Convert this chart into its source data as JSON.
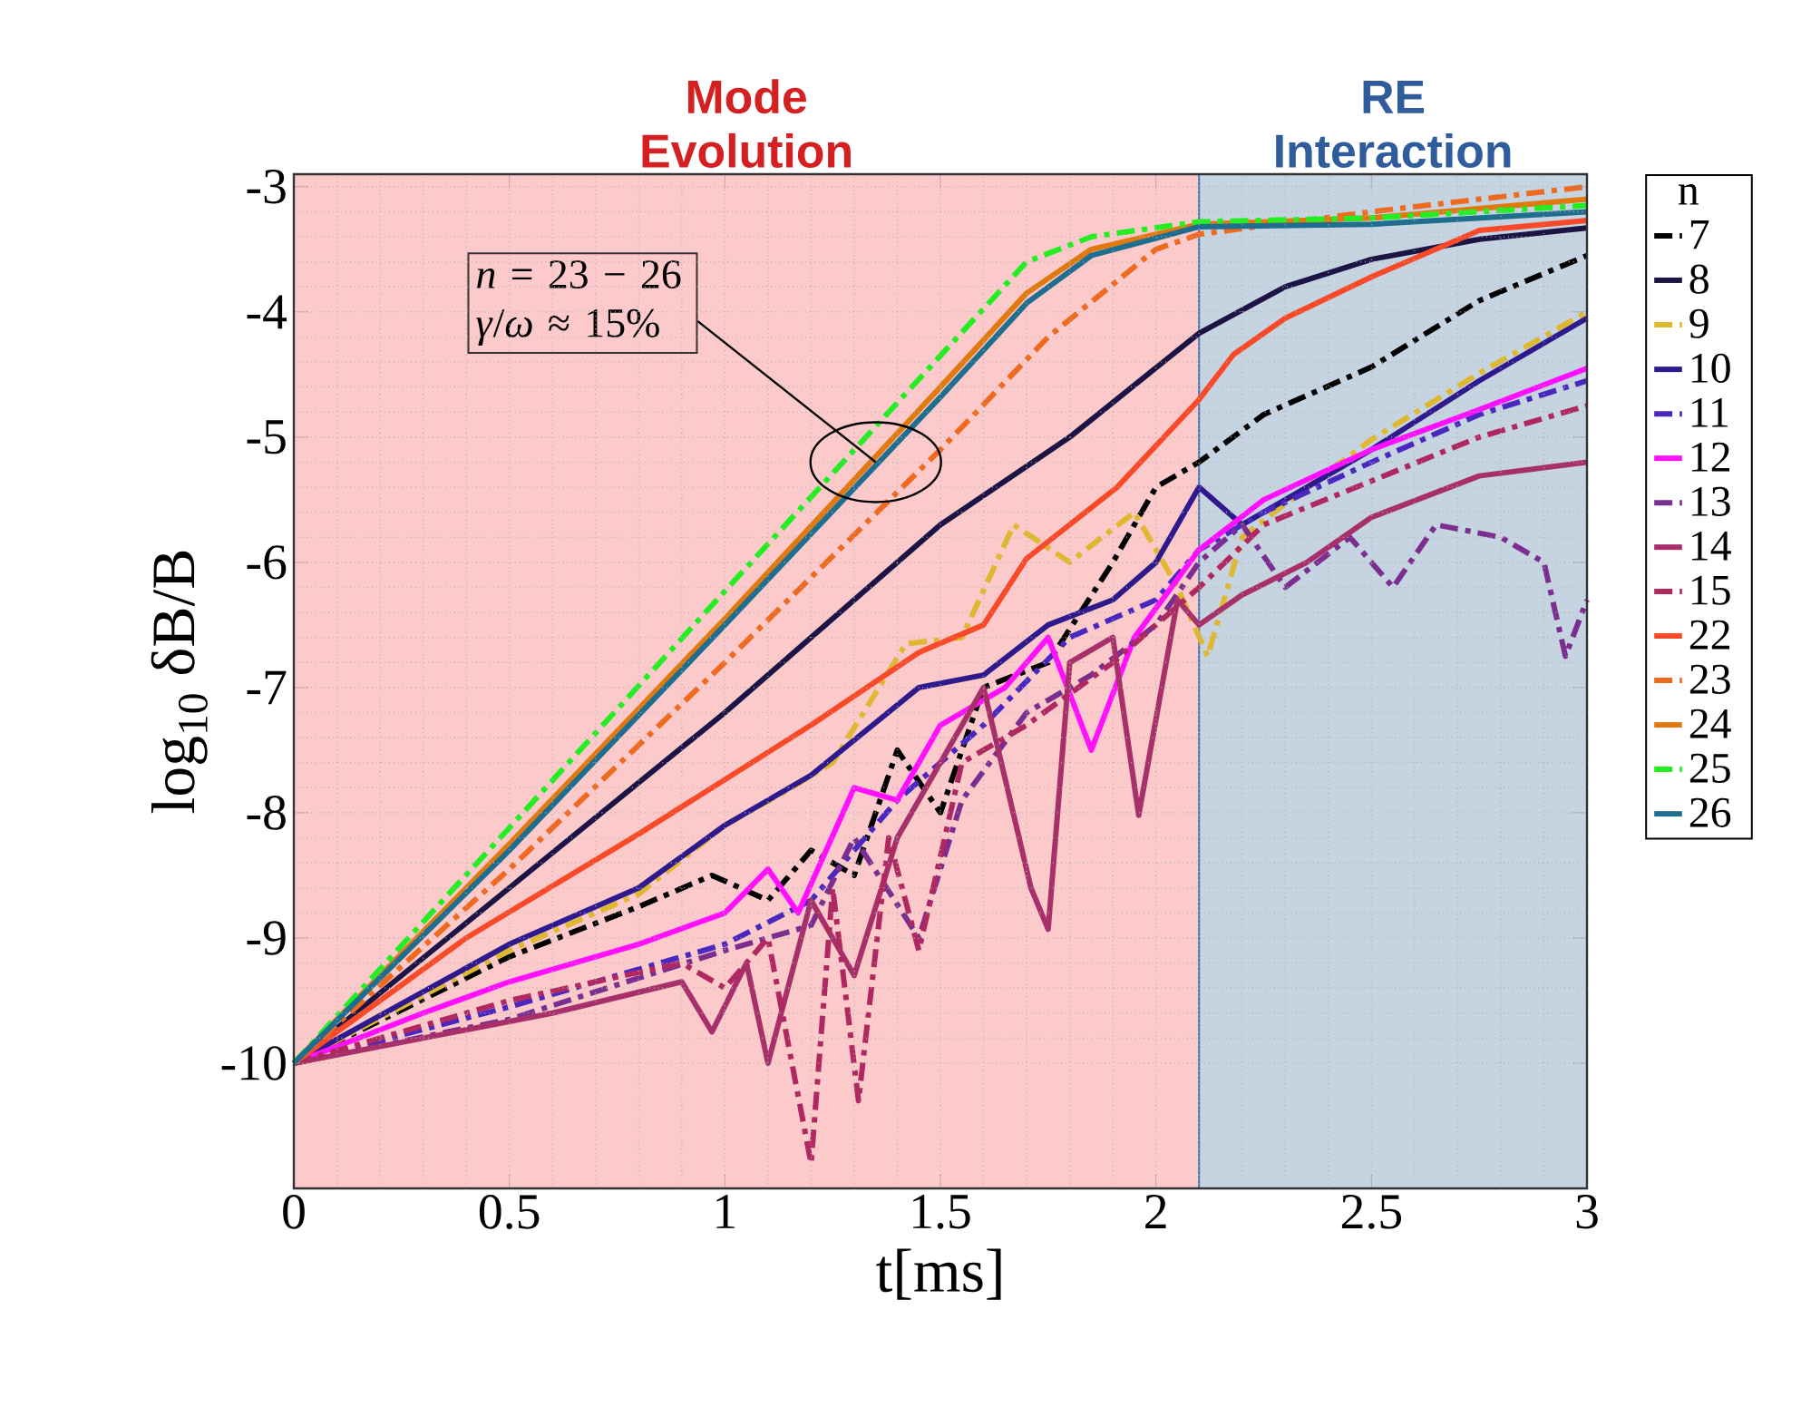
{
  "chart_data": {
    "type": "line",
    "xlabel": "t[ms]",
    "ylabel": "log$_{10}$ δB/B",
    "legend_title": "n",
    "xlim": [
      0,
      3
    ],
    "ylim": [
      -11,
      -2.9
    ],
    "xticks": [
      0,
      0.5,
      1,
      1.5,
      2,
      2.5,
      3
    ],
    "yticks": [
      -10,
      -9,
      -8,
      -7,
      -6,
      -5,
      -4,
      -3
    ],
    "grid": true,
    "legend": "right",
    "bands": [
      {
        "axis": "x",
        "from": 0,
        "to": 2.1,
        "label": "Mode Evolution",
        "color": "#fccaca"
      },
      {
        "axis": "x",
        "from": 2.1,
        "to": 3,
        "label": "RE Interaction",
        "color": "#c6d4e1"
      }
    ],
    "ref_lines": [
      {
        "axis": "x",
        "value": 2.1,
        "color": "#3c6eaa"
      }
    ],
    "annotations": [
      {
        "text": "*n* = 23 − 26 *γ*/*ω* ≈ 15%",
        "x": 1.35,
        "y": -5.2
      }
    ],
    "series": [
      {
        "name": "7",
        "color": "#000000",
        "line_style": "dashed",
        "x": [
          0,
          0.5,
          0.8,
          0.97,
          1.1,
          1.2,
          1.3,
          1.4,
          1.5,
          1.6,
          1.75,
          1.9,
          2.0,
          2.1,
          2.25,
          2.5,
          2.75,
          3
        ],
        "values": [
          -10,
          -9.15,
          -8.75,
          -8.5,
          -8.7,
          -8.3,
          -8.5,
          -7.5,
          -8.0,
          -7.0,
          -6.8,
          -6.0,
          -5.4,
          -5.2,
          -4.82,
          -4.44,
          -3.91,
          -3.55
        ]
      },
      {
        "name": "8",
        "color": "#1c1444",
        "line_style": "solid",
        "x": [
          0,
          0.5,
          1,
          1.5,
          1.8,
          2.1,
          2.3,
          2.5,
          2.75,
          3
        ],
        "values": [
          -10,
          -8.6,
          -7.2,
          -5.7,
          -5.0,
          -4.17,
          -3.8,
          -3.58,
          -3.42,
          -3.33
        ]
      },
      {
        "name": "9",
        "color": "#e0b830",
        "line_style": "dashed",
        "x": [
          0,
          0.5,
          0.8,
          1.0,
          1.14,
          1.25,
          1.42,
          1.55,
          1.67,
          1.8,
          1.95,
          2.05,
          2.12,
          2.2,
          2.35,
          2.5,
          2.75,
          3
        ],
        "values": [
          -10,
          -9.1,
          -8.65,
          -8.1,
          -7.83,
          -7.6,
          -6.65,
          -6.6,
          -5.7,
          -6.0,
          -5.6,
          -6.2,
          -6.75,
          -5.8,
          -5.4,
          -5.02,
          -4.49,
          -4.0
        ]
      },
      {
        "name": "10",
        "color": "#2e1a8c",
        "line_style": "solid",
        "x": [
          0,
          0.5,
          0.8,
          1.0,
          1.2,
          1.45,
          1.6,
          1.75,
          1.9,
          2.0,
          2.1,
          2.2,
          2.35,
          2.5,
          2.75,
          3
        ],
        "values": [
          -10,
          -9.05,
          -8.6,
          -8.1,
          -7.7,
          -7.0,
          -6.9,
          -6.5,
          -6.3,
          -6.0,
          -5.4,
          -5.7,
          -5.4,
          -5.1,
          -4.55,
          -4.05
        ]
      },
      {
        "name": "11",
        "color": "#4a28c0",
        "line_style": "dashed",
        "x": [
          0,
          0.5,
          1.0,
          1.2,
          1.4,
          1.6,
          1.8,
          2.0,
          2.1,
          2.25,
          2.5,
          2.75,
          3
        ],
        "values": [
          -10,
          -9.55,
          -9.05,
          -8.7,
          -7.9,
          -7.3,
          -6.6,
          -6.3,
          -5.9,
          -5.6,
          -5.2,
          -4.82,
          -4.55
        ]
      },
      {
        "name": "12",
        "color": "#ff10ff",
        "line_style": "solid",
        "x": [
          0,
          0.3,
          0.5,
          0.8,
          1.0,
          1.1,
          1.17,
          1.3,
          1.4,
          1.5,
          1.65,
          1.75,
          1.85,
          1.95,
          2.1,
          2.25,
          2.5,
          2.75,
          3
        ],
        "values": [
          -10,
          -9.6,
          -9.35,
          -9.05,
          -8.8,
          -8.45,
          -8.8,
          -7.8,
          -7.9,
          -7.3,
          -7.0,
          -6.6,
          -7.5,
          -6.6,
          -5.9,
          -5.5,
          -5.1,
          -4.78,
          -4.45
        ]
      },
      {
        "name": "13",
        "color": "#7a2f90",
        "line_style": "dashed",
        "x": [
          0,
          0.5,
          1.0,
          1.2,
          1.3,
          1.45,
          1.55,
          1.7,
          1.85,
          2.0,
          2.1,
          2.2,
          2.3,
          2.45,
          2.55,
          2.65,
          2.8,
          2.9,
          2.95,
          3
        ],
        "values": [
          -10,
          -9.65,
          -9.1,
          -8.9,
          -8.2,
          -9.0,
          -7.9,
          -7.2,
          -6.9,
          -6.5,
          -6.0,
          -5.7,
          -6.2,
          -5.8,
          -6.2,
          -5.7,
          -5.8,
          -6.0,
          -6.75,
          -6.3
        ]
      },
      {
        "name": "14",
        "color": "#a8306a",
        "line_style": "solid",
        "x": [
          0,
          0.3,
          0.6,
          0.9,
          0.97,
          1.05,
          1.1,
          1.2,
          1.3,
          1.4,
          1.5,
          1.6,
          1.71,
          1.75,
          1.8,
          1.9,
          1.96,
          2.05,
          2.1,
          2.2,
          2.35,
          2.5,
          2.75,
          3
        ],
        "values": [
          -10,
          -9.8,
          -9.6,
          -9.35,
          -9.75,
          -9.2,
          -10.0,
          -8.7,
          -9.3,
          -8.2,
          -7.6,
          -7.0,
          -8.6,
          -8.93,
          -6.8,
          -6.6,
          -8.02,
          -6.3,
          -6.5,
          -6.26,
          -6.0,
          -5.64,
          -5.31,
          -5.2
        ]
      },
      {
        "name": "15",
        "color": "#b02860",
        "line_style": "dashed",
        "x": [
          0,
          0.5,
          0.9,
          1.0,
          1.1,
          1.2,
          1.25,
          1.31,
          1.38,
          1.45,
          1.55,
          1.7,
          1.9,
          2.1,
          2.25,
          2.5,
          2.75,
          3
        ],
        "values": [
          -10,
          -9.5,
          -9.2,
          -9.4,
          -9.0,
          -10.8,
          -8.6,
          -10.3,
          -8.2,
          -9.1,
          -7.6,
          -7.3,
          -6.8,
          -6.2,
          -5.7,
          -5.35,
          -5.0,
          -4.75
        ]
      },
      {
        "name": "22",
        "color": "#f84a28",
        "line_style": "solid",
        "x": [
          0,
          0.4,
          0.8,
          1.2,
          1.45,
          1.6,
          1.7,
          1.91,
          2.1,
          2.18,
          2.3,
          2.5,
          2.75,
          3
        ],
        "values": [
          -10,
          -9.0,
          -8.17,
          -7.3,
          -6.72,
          -6.5,
          -5.97,
          -5.4,
          -4.7,
          -4.34,
          -4.05,
          -3.72,
          -3.35,
          -3.27
        ]
      },
      {
        "name": "23",
        "color": "#ee6a20",
        "line_style": "dashed",
        "x": [
          0,
          0.5,
          1,
          1.5,
          1.75,
          2.0,
          2.1,
          2.5,
          3
        ],
        "values": [
          -10,
          -8.45,
          -6.8,
          -5.1,
          -4.2,
          -3.5,
          -3.38,
          -3.2,
          -3.0
        ]
      },
      {
        "name": "24",
        "color": "#e07a10",
        "line_style": "solid",
        "x": [
          0,
          0.5,
          1,
          1.5,
          1.7,
          1.85,
          2.1,
          2.5,
          3
        ],
        "values": [
          -10,
          -8.25,
          -6.45,
          -4.6,
          -3.85,
          -3.5,
          -3.3,
          -3.25,
          -3.1
        ]
      },
      {
        "name": "25",
        "color": "#22ee22",
        "line_style": "dashed",
        "x": [
          0,
          0.5,
          1,
          1.5,
          1.7,
          1.85,
          2.1,
          2.5,
          3
        ],
        "values": [
          -10,
          -8.12,
          -6.23,
          -4.35,
          -3.6,
          -3.4,
          -3.28,
          -3.25,
          -3.15
        ]
      },
      {
        "name": "26",
        "color": "#1f6e90",
        "line_style": "solid",
        "x": [
          0,
          0.5,
          1,
          1.5,
          1.7,
          1.85,
          2.1,
          2.5,
          3
        ],
        "values": [
          -10,
          -8.3,
          -6.5,
          -4.68,
          -3.93,
          -3.55,
          -3.32,
          -3.3,
          -3.2
        ]
      }
    ]
  }
}
